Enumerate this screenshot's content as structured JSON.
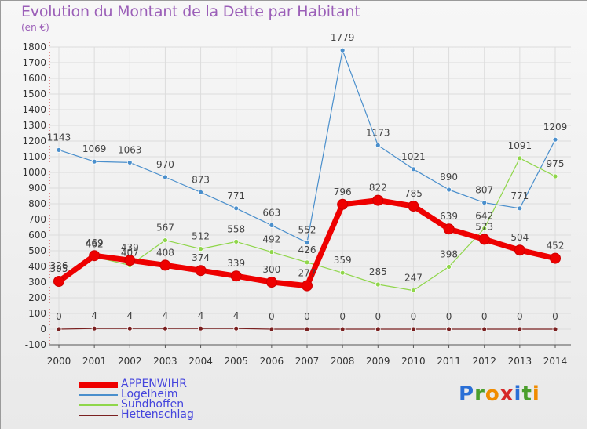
{
  "title": "Evolution du Montant de la Dette par Habitant",
  "subtitle": "(en €)",
  "logo": {
    "letters": [
      "P",
      "r",
      "o",
      "x",
      "i",
      "t",
      "i"
    ],
    "colors": [
      "#2a6fd6",
      "#4b9e2c",
      "#f08c00",
      "#d62828",
      "#2a6fd6",
      "#4b9e2c",
      "#f08c00"
    ]
  },
  "chart_data": {
    "type": "line",
    "title": "Evolution du Montant de la Dette par Habitant",
    "xlabel": "",
    "ylabel": "(en €)",
    "categories": [
      "2000",
      "2001",
      "2002",
      "2003",
      "2004",
      "2005",
      "2006",
      "2007",
      "2008",
      "2009",
      "2010",
      "2011",
      "2012",
      "2013",
      "2014"
    ],
    "ylim": [
      -100,
      1800
    ],
    "yticks": [
      -100,
      0,
      100,
      200,
      300,
      400,
      500,
      600,
      700,
      800,
      900,
      1000,
      1100,
      1200,
      1300,
      1400,
      1500,
      1600,
      1700,
      1800
    ],
    "grid": true,
    "legend_position": "bottom-left",
    "series": [
      {
        "name": "APPENWIHR",
        "color": "#ee0000",
        "values": [
          305,
          469,
          439,
          408,
          374,
          339,
          300,
          277,
          796,
          822,
          785,
          639,
          573,
          504,
          452
        ]
      },
      {
        "name": "Logelheim",
        "color": "#4a8fcc",
        "values": [
          1143,
          1069,
          1063,
          970,
          873,
          771,
          663,
          552,
          1779,
          1173,
          1021,
          890,
          807,
          771,
          1209
        ]
      },
      {
        "name": "Sundhoffen",
        "color": "#8fd64a",
        "values": [
          326,
          462,
          407,
          567,
          512,
          558,
          492,
          426,
          359,
          285,
          247,
          398,
          642,
          1091,
          975
        ]
      },
      {
        "name": "Hettenschlag",
        "color": "#7a2020",
        "values": [
          0,
          4,
          4,
          4,
          4,
          4,
          0,
          0,
          0,
          0,
          0,
          0,
          0,
          0,
          0
        ]
      }
    ]
  }
}
